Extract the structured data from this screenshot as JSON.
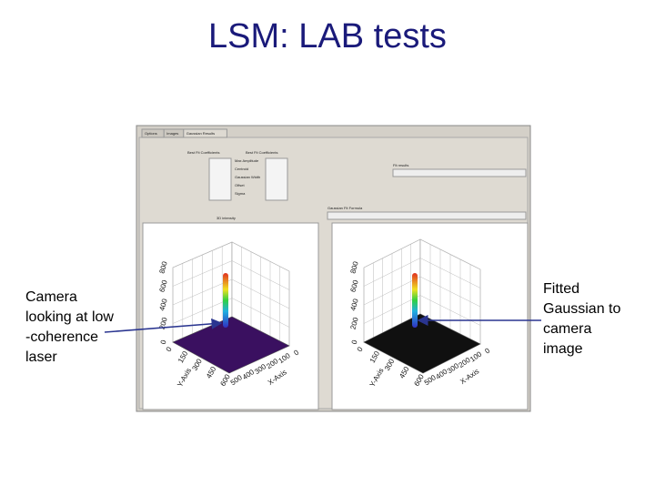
{
  "title": "LSM: LAB tests",
  "annotations": {
    "left": [
      "Camera",
      "looking at low",
      "-coherence",
      "laser"
    ],
    "right": [
      "Fitted",
      "Gaussian to",
      "camera",
      "image"
    ]
  },
  "window": {
    "tabs": [
      "Options",
      "Images",
      "Gaussian Results"
    ],
    "coefficients": {
      "headers": [
        "Best Fit Coefficients",
        "Best Fit Coefficients"
      ],
      "labels": [
        "Max Amplitude",
        "Centroid",
        "Gaussian Width",
        "Offset",
        "Sigma"
      ]
    },
    "fields": [
      "Fit results",
      "Gaussian Fit Formula"
    ],
    "plot_caption": "3D intensity"
  },
  "plots": [
    {
      "z_ticks": [
        "0",
        "200",
        "400",
        "600",
        "800"
      ],
      "y_ticks": [
        "0",
        "150",
        "300",
        "450",
        "600"
      ],
      "x_ticks": [
        "0",
        "100",
        "200",
        "300",
        "400",
        "500"
      ],
      "y_label": "Y-Axis",
      "x_label": "X-Axis"
    },
    {
      "z_ticks": [
        "0",
        "200",
        "400",
        "600",
        "800"
      ],
      "y_ticks": [
        "0",
        "150",
        "300",
        "450",
        "600"
      ],
      "x_ticks": [
        "0",
        "100",
        "200",
        "300",
        "400",
        "500"
      ],
      "y_label": "Y-Axis",
      "x_label": "X-Axis"
    }
  ]
}
